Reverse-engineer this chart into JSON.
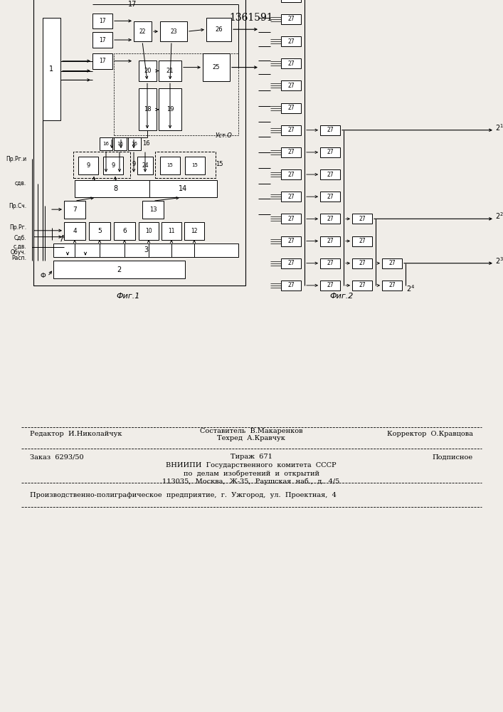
{
  "title": "1361591",
  "bg_color": "#f0ede8",
  "fig1_label": "Фиг.1",
  "fig2_label": "Фиг.2",
  "footer": {
    "line1_left": "Редактор  И.Николайчук",
    "line1_center_top": "Составитель  В.Макаренков",
    "line1_center_bot": "Техред  А.Кравчук",
    "line1_right": "Корректор  О.Кравцова",
    "line2_left": "Заказ  6293/50",
    "line2_center": "Тираж  671",
    "line2_right": "Подписное",
    "line3": "ВНИИПИ  Государственного  комитета  СССР",
    "line4": "по  делам  изобретений  и  открытий",
    "line5": "113035,  Москва,  Ж-35,  Раушская  наб.,  д.  4/5",
    "line6": "Производственно-полиграфическое  предприятие,  г.  Ужгород,  ул.  Проектная,  4"
  }
}
